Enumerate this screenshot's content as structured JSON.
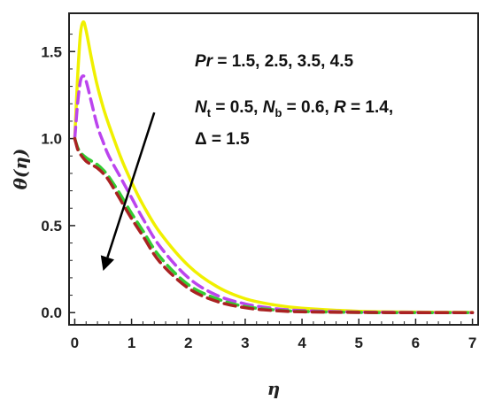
{
  "chart_data": {
    "type": "line",
    "title": "",
    "xlabel": "η",
    "ylabel": "θ(η)",
    "xlim": [
      -0.1,
      7.1
    ],
    "ylim": [
      -0.07,
      1.72
    ],
    "x_ticks": [
      "0",
      "1",
      "2",
      "3",
      "4",
      "5",
      "6",
      "7"
    ],
    "y_ticks": [
      "0.0",
      "0.5",
      "1.0",
      "1.5"
    ],
    "grid": false,
    "annotations": {
      "line1": "Pr = 1.5,  2.5,  3.5,  4.5",
      "line2": "Nt = 0.5, Nb = 0.6, R = 1.4,",
      "line3": "Δ = 1.5",
      "pr_symbol": "Pr",
      "pr_values": " = 1.5,  2.5,  3.5,  4.5",
      "n_symbol": "N",
      "t_sub": "t",
      "nt_value": " = 0.5, ",
      "b_sub": "b",
      "nb_value": " = 0.6, ",
      "r_symbol": "R",
      "r_value": " = 1.4,",
      "delta_line": "Δ = 1.5"
    },
    "arrow": {
      "from": [
        1.4,
        1.15
      ],
      "to": [
        0.5,
        0.24
      ],
      "meaning": "increasing Pr"
    },
    "series": [
      {
        "color": "#f0f000",
        "dash": "solid",
        "x": [
          0,
          0.05,
          0.1,
          0.15,
          0.2,
          0.3,
          0.4,
          0.5,
          0.6,
          0.8,
          1.0,
          1.2,
          1.5,
          2.0,
          2.5,
          3.0,
          3.5,
          4.0,
          5.0,
          6.0,
          7.0
        ],
        "y": [
          1.0,
          1.35,
          1.6,
          1.67,
          1.62,
          1.45,
          1.3,
          1.18,
          1.08,
          0.9,
          0.75,
          0.62,
          0.46,
          0.27,
          0.15,
          0.08,
          0.045,
          0.025,
          0.008,
          0.003,
          0.001
        ]
      },
      {
        "color": "#bb44ee",
        "dash": "dashed",
        "x": [
          0,
          0.05,
          0.1,
          0.15,
          0.2,
          0.3,
          0.4,
          0.5,
          0.6,
          0.8,
          1.0,
          1.2,
          1.5,
          2.0,
          2.5,
          3.0,
          3.5,
          4.0,
          5.0,
          6.0,
          7.0
        ],
        "y": [
          1.0,
          1.2,
          1.33,
          1.36,
          1.33,
          1.2,
          1.07,
          0.98,
          0.9,
          0.78,
          0.66,
          0.54,
          0.38,
          0.2,
          0.1,
          0.05,
          0.024,
          0.012,
          0.003,
          0.001,
          0.0
        ]
      },
      {
        "color": "#33cc33",
        "dash": "dashed",
        "x": [
          0,
          0.05,
          0.1,
          0.2,
          0.3,
          0.4,
          0.5,
          0.6,
          0.8,
          1.0,
          1.2,
          1.5,
          2.0,
          2.5,
          3.0,
          3.5,
          4.0,
          5.0,
          6.0,
          7.0
        ],
        "y": [
          1.0,
          0.95,
          0.92,
          0.89,
          0.87,
          0.85,
          0.82,
          0.78,
          0.68,
          0.57,
          0.47,
          0.32,
          0.16,
          0.08,
          0.035,
          0.016,
          0.007,
          0.001,
          0.0,
          0.0
        ]
      },
      {
        "color": "#aa2222",
        "dash": "dashed",
        "x": [
          0,
          0.05,
          0.1,
          0.2,
          0.3,
          0.4,
          0.5,
          0.6,
          0.8,
          1.0,
          1.2,
          1.5,
          2.0,
          2.5,
          3.0,
          3.5,
          4.0,
          5.0,
          6.0,
          7.0
        ],
        "y": [
          1.0,
          0.94,
          0.91,
          0.87,
          0.85,
          0.83,
          0.8,
          0.76,
          0.65,
          0.54,
          0.44,
          0.29,
          0.14,
          0.065,
          0.028,
          0.012,
          0.005,
          0.001,
          0.0,
          0.0
        ]
      }
    ]
  }
}
